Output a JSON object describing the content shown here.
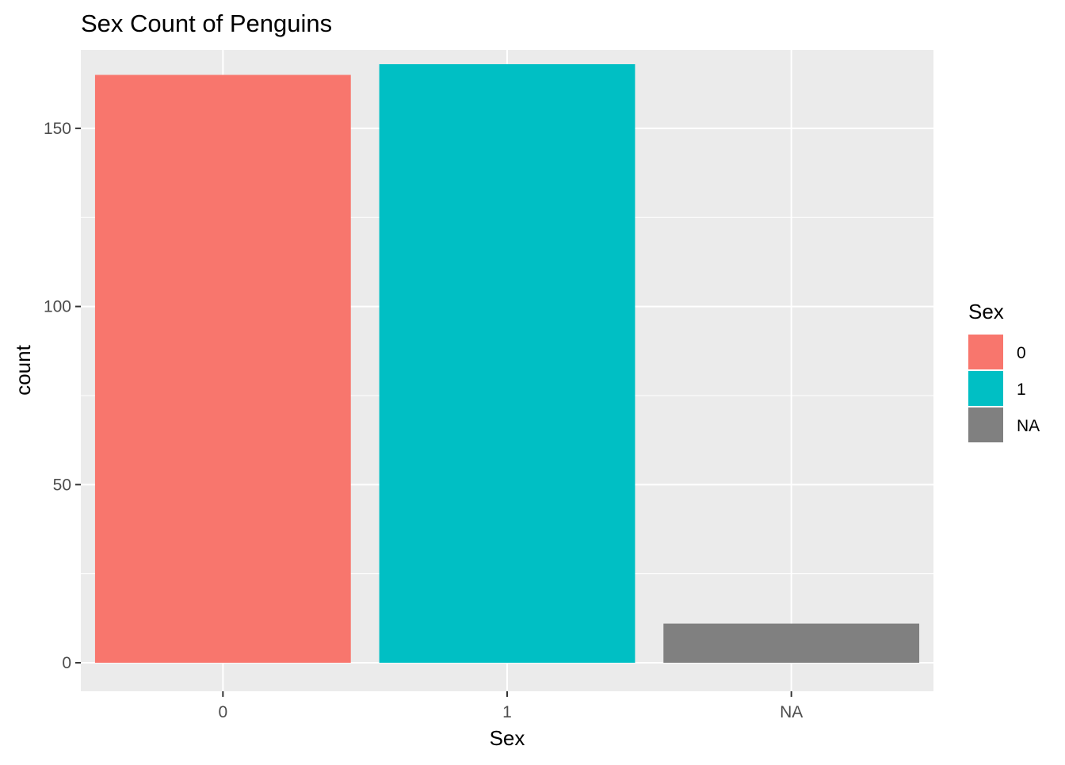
{
  "chart_data": {
    "type": "bar",
    "title": "Sex Count of Penguins",
    "xlabel": "Sex",
    "ylabel": "count",
    "categories": [
      "0",
      "1",
      "NA"
    ],
    "values": [
      165,
      168,
      11
    ],
    "colors": [
      "#F8766D",
      "#00BFC4",
      "#808080"
    ],
    "ylim": [
      -8,
      172
    ],
    "yticks": [
      0,
      50,
      100,
      150
    ],
    "grid": true,
    "legend": {
      "title": "Sex",
      "position": "right",
      "entries": [
        "0",
        "1",
        "NA"
      ]
    },
    "panel_background": "#EBEBEB",
    "grid_color": "#FFFFFF"
  }
}
